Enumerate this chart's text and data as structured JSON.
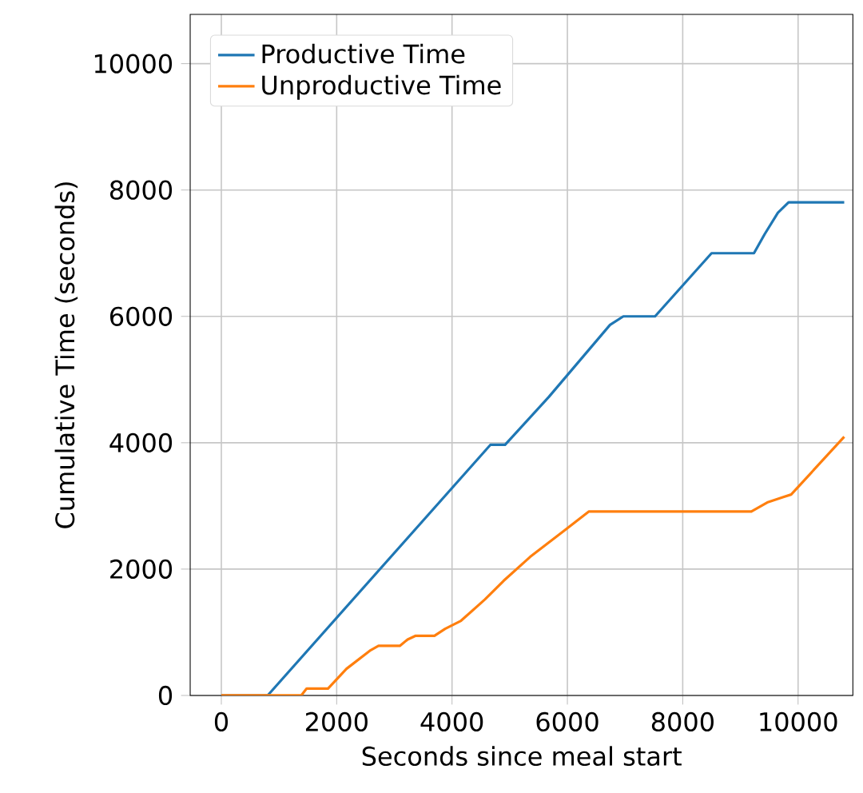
{
  "chart_data": {
    "type": "line",
    "xlabel": "Seconds since meal start",
    "ylabel": "Cumulative Time (seconds)",
    "xlim": [
      -540,
      10950
    ],
    "ylim": [
      0,
      10780
    ],
    "xticks": [
      0,
      2000,
      4000,
      6000,
      8000,
      10000
    ],
    "yticks": [
      0,
      2000,
      4000,
      6000,
      8000,
      10000
    ],
    "grid": true,
    "legend": "top left",
    "line_style": "solid",
    "series": [
      {
        "name": "Productive Time",
        "color": "#1f77b4",
        "x": [
          0,
          803,
          4665,
          4920,
          5680,
          6740,
          6970,
          7520,
          8500,
          9235,
          9420,
          9650,
          9835,
          10800
        ],
        "values": [
          0,
          0,
          3967,
          3967,
          4727,
          5866,
          6000,
          6000,
          7000,
          7000,
          7300,
          7640,
          7805,
          7805
        ]
      },
      {
        "name": "Unproductive Time",
        "color": "#ff7f0e",
        "x": [
          0,
          1385,
          1480,
          1850,
          2170,
          2590,
          2725,
          3095,
          3230,
          3370,
          3695,
          3880,
          4155,
          4570,
          4895,
          5355,
          5955,
          6370,
          9190,
          9465,
          9745,
          9880,
          10800
        ],
        "values": [
          0,
          0,
          109,
          109,
          422,
          717,
          785,
          785,
          886,
          945,
          945,
          1055,
          1182,
          1519,
          1815,
          2194,
          2616,
          2911,
          2911,
          3055,
          3140,
          3180,
          4094
        ]
      }
    ]
  }
}
